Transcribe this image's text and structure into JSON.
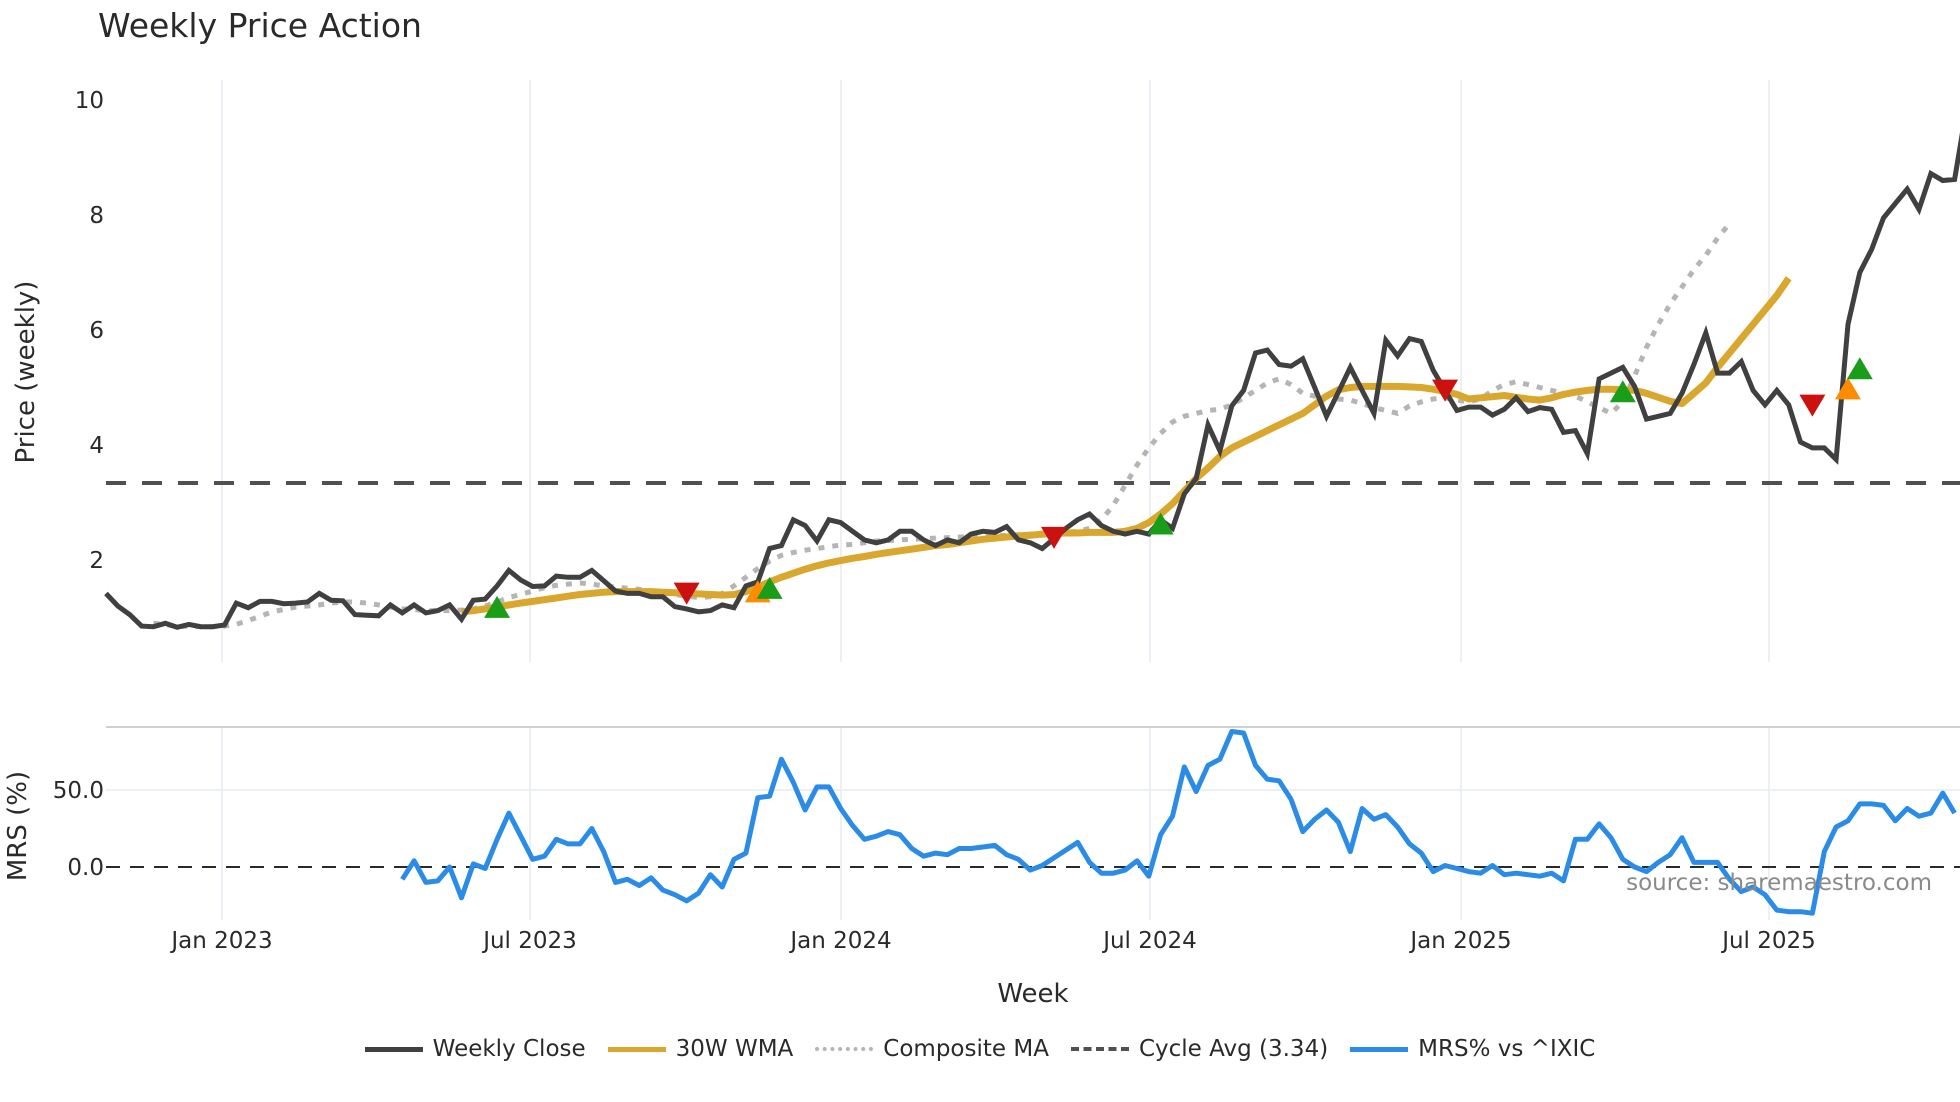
{
  "chart": {
    "title": "Weekly Price Action",
    "source": "source: sharemaestro.com"
  },
  "colors": {
    "weekly_close": "#404040",
    "wma30": "#d9a62e",
    "composite_ma": "#b5b5b5",
    "cycle_avg": "#505050",
    "mrs": "#2b8ce8",
    "buy": "#1a9e1a",
    "sell": "#cc1111",
    "caution": "#ff8c00",
    "grid": "#eceff3"
  },
  "legend": [
    {
      "key": "weekly_close",
      "label": "Weekly Close",
      "style": "solid"
    },
    {
      "key": "wma30",
      "label": "30W WMA",
      "style": "solid"
    },
    {
      "key": "composite_ma",
      "label": "Composite MA",
      "style": "dotted"
    },
    {
      "key": "cycle_avg",
      "label": "Cycle Avg (3.34)",
      "style": "dashed"
    },
    {
      "key": "mrs",
      "label": "MRS% vs ^IXIC",
      "style": "solid"
    }
  ],
  "chart_data": [
    {
      "type": "line",
      "title": "Weekly Price Action",
      "xlabel": "Week",
      "ylabel": "Price (weekly)",
      "ylim": [
        0.3,
        10.4
      ],
      "yticks": [
        2,
        4,
        6,
        8,
        10
      ],
      "xticks": [
        "Jan 2023",
        "Jul 2023",
        "Jan 2024",
        "Jul 2024",
        "Jan 2025",
        "Jul 2025"
      ],
      "grid": true,
      "legend_position": "bottom",
      "x_start": "2022-10-24",
      "x_step": "1 week",
      "series": [
        {
          "name": "Weekly Close",
          "values": [
            1.42,
            1.2,
            1.05,
            0.85,
            0.84,
            0.9,
            0.83,
            0.88,
            0.84,
            0.84,
            0.87,
            1.25,
            1.17,
            1.28,
            1.28,
            1.24,
            1.25,
            1.27,
            1.42,
            1.3,
            1.29,
            1.05,
            1.04,
            1.03,
            1.22,
            1.08,
            1.22,
            1.08,
            1.12,
            1.22,
            0.97,
            1.3,
            1.32,
            1.55,
            1.82,
            1.65,
            1.54,
            1.55,
            1.72,
            1.7,
            1.7,
            1.82,
            1.64,
            1.46,
            1.42,
            1.42,
            1.36,
            1.36,
            1.19,
            1.15,
            1.1,
            1.12,
            1.22,
            1.17,
            1.55,
            1.62,
            2.2,
            2.25,
            2.7,
            2.6,
            2.33,
            2.7,
            2.65,
            2.5,
            2.35,
            2.3,
            2.35,
            2.5,
            2.5,
            2.35,
            2.25,
            2.35,
            2.3,
            2.45,
            2.5,
            2.48,
            2.58,
            2.35,
            2.3,
            2.2,
            2.37,
            2.55,
            2.7,
            2.8,
            2.6,
            2.5,
            2.45,
            2.5,
            2.45,
            2.7,
            2.55,
            3.15,
            3.42,
            4.35,
            3.9,
            4.68,
            4.95,
            5.6,
            5.65,
            5.4,
            5.37,
            5.5,
            5.0,
            4.5,
            4.92,
            5.35,
            4.95,
            4.55,
            5.82,
            5.55,
            5.85,
            5.8,
            5.3,
            4.95,
            4.6,
            4.66,
            4.66,
            4.52,
            4.62,
            4.82,
            4.58,
            4.65,
            4.62,
            4.22,
            4.25,
            3.85,
            5.15,
            5.25,
            5.35,
            5.02,
            4.45,
            4.5,
            4.55,
            4.9,
            5.4,
            5.95,
            5.25,
            5.25,
            5.45,
            4.95,
            4.7,
            4.95,
            4.7,
            4.05,
            3.95,
            3.95,
            3.75,
            6.1,
            7.0,
            7.4,
            7.95,
            8.2,
            8.45,
            8.1,
            8.72,
            8.6,
            8.62,
            9.85,
            9.45
          ]
        },
        {
          "name": "30W WMA",
          "start_index": 30,
          "values": [
            1.1,
            1.12,
            1.15,
            1.18,
            1.22,
            1.25,
            1.28,
            1.31,
            1.34,
            1.37,
            1.4,
            1.42,
            1.44,
            1.45,
            1.45,
            1.45,
            1.45,
            1.44,
            1.43,
            1.42,
            1.41,
            1.4,
            1.39,
            1.4,
            1.45,
            1.53,
            1.62,
            1.7,
            1.77,
            1.84,
            1.9,
            1.95,
            1.99,
            2.03,
            2.06,
            2.1,
            2.13,
            2.16,
            2.19,
            2.22,
            2.25,
            2.27,
            2.3,
            2.33,
            2.36,
            2.38,
            2.4,
            2.42,
            2.43,
            2.45,
            2.46,
            2.47,
            2.47,
            2.48,
            2.48,
            2.48,
            2.5,
            2.55,
            2.65,
            2.8,
            2.98,
            3.2,
            3.42,
            3.6,
            3.8,
            3.95,
            4.05,
            4.15,
            4.25,
            4.35,
            4.45,
            4.55,
            4.7,
            4.85,
            4.96,
            5.0,
            5.02,
            5.02,
            5.02,
            5.02,
            5.01,
            5.0,
            4.97,
            4.93,
            4.88,
            4.8,
            4.82,
            4.84,
            4.86,
            4.83,
            4.8,
            4.78,
            4.82,
            4.88,
            4.92,
            4.95,
            4.97,
            4.97,
            4.96,
            4.95,
            4.9,
            4.83,
            4.76,
            4.72,
            4.9,
            5.08,
            5.35,
            5.6,
            5.85,
            6.1,
            6.35,
            6.6,
            6.9
          ]
        },
        {
          "name": "Composite MA",
          "start_index": 4,
          "values": [
            0.9,
            0.88,
            0.84,
            0.85,
            0.84,
            0.84,
            0.85,
            0.88,
            0.95,
            1.02,
            1.1,
            1.14,
            1.18,
            1.2,
            1.22,
            1.25,
            1.27,
            1.27,
            1.25,
            1.22,
            1.18,
            1.15,
            1.14,
            1.12,
            1.12,
            1.12,
            1.13,
            1.15,
            1.2,
            1.27,
            1.35,
            1.4,
            1.46,
            1.52,
            1.56,
            1.58,
            1.6,
            1.58,
            1.55,
            1.53,
            1.51,
            1.49,
            1.46,
            1.43,
            1.4,
            1.37,
            1.35,
            1.36,
            1.42,
            1.55,
            1.7,
            1.85,
            1.98,
            2.08,
            2.13,
            2.17,
            2.2,
            2.23,
            2.26,
            2.27,
            2.3,
            2.33,
            2.34,
            2.35,
            2.36,
            2.37,
            2.38,
            2.39,
            2.4,
            2.4,
            2.41,
            2.42,
            2.43,
            2.44,
            2.45,
            2.46,
            2.47,
            2.48,
            2.5,
            2.55,
            2.7,
            2.95,
            3.3,
            3.65,
            3.95,
            4.2,
            4.4,
            4.5,
            4.55,
            4.6,
            4.62,
            4.7,
            4.82,
            4.95,
            5.08,
            5.15,
            5.05,
            4.9,
            4.85,
            4.85,
            4.8,
            4.78,
            4.72,
            4.65,
            4.6,
            4.55,
            4.68,
            4.75,
            4.8,
            4.82,
            4.78,
            4.75,
            4.8,
            4.95,
            5.05,
            5.1,
            5.05,
            5.0,
            4.95,
            4.9,
            4.85,
            4.75,
            4.65,
            4.55,
            4.75,
            5.2,
            5.7,
            6.1,
            6.45,
            6.75,
            7.05,
            7.3,
            7.6,
            7.85
          ]
        },
        {
          "name": "Cycle Avg",
          "values": [
            3.34
          ]
        }
      ],
      "markers": [
        {
          "type": "buy",
          "index": 33,
          "value": 1.15
        },
        {
          "type": "sell",
          "index": 49,
          "value": 1.45
        },
        {
          "type": "caution",
          "index": 55,
          "value": 1.42
        },
        {
          "type": "buy",
          "index": 56,
          "value": 1.48
        },
        {
          "type": "sell",
          "index": 80,
          "value": 2.42
        },
        {
          "type": "buy",
          "index": 89,
          "value": 2.6
        },
        {
          "type": "sell",
          "index": 113,
          "value": 4.98
        },
        {
          "type": "buy",
          "index": 128,
          "value": 4.9
        },
        {
          "type": "sell",
          "index": 144,
          "value": 4.72
        },
        {
          "type": "caution",
          "index": 147,
          "value": 4.95
        },
        {
          "type": "buy",
          "index": 148,
          "value": 5.3
        }
      ]
    },
    {
      "type": "line",
      "title": "",
      "ylabel": "MRS (%)",
      "ylim": [
        -40,
        85
      ],
      "yticks": [
        0.0,
        50.0
      ],
      "reference_line": 0.0,
      "series": [
        {
          "name": "MRS% vs ^IXIC",
          "start_index": 25,
          "values": [
            -8,
            4,
            -10,
            -9,
            0,
            -20,
            2,
            -1,
            18,
            35,
            20,
            5,
            7,
            18,
            15,
            15,
            25,
            10,
            -10,
            -8,
            -12,
            -7,
            -15,
            -18,
            -22,
            -17,
            -5,
            -13,
            5,
            9,
            45,
            46,
            70,
            55,
            37,
            52,
            52,
            38,
            27,
            18,
            20,
            23,
            21,
            12,
            7,
            9,
            8,
            12,
            12,
            13,
            14,
            8,
            5,
            -2,
            1,
            6,
            11,
            16,
            3,
            -4,
            -4,
            -2,
            4,
            -6,
            21,
            33,
            65,
            49,
            66,
            70,
            88,
            87,
            66,
            57,
            56,
            44,
            23,
            31,
            37,
            29,
            10,
            38,
            31,
            34,
            26,
            15,
            9,
            -3,
            1,
            -1,
            -3,
            -4,
            1,
            -5,
            -4,
            -5,
            -6,
            -4,
            -9,
            18,
            18,
            28,
            19,
            5,
            0,
            -3,
            3,
            8,
            19,
            3,
            3,
            3,
            -8,
            -16,
            -13,
            -18,
            -28,
            -29,
            -29,
            -30,
            10,
            26,
            30,
            41,
            41,
            40,
            30,
            38,
            33,
            35,
            48,
            35
          ]
        }
      ]
    }
  ],
  "axes": {
    "price_yticks": [
      "10",
      "8",
      "6",
      "4",
      "2"
    ],
    "price_ylabel": "Price (weekly)",
    "mrs_yticks": [
      "50.0",
      "0.0"
    ],
    "mrs_ylabel": "MRS (%)",
    "xticks": [
      "Jan 2023",
      "Jul 2023",
      "Jan 2024",
      "Jul 2024",
      "Jan 2025",
      "Jul 2025"
    ],
    "xlabel": "Week"
  }
}
